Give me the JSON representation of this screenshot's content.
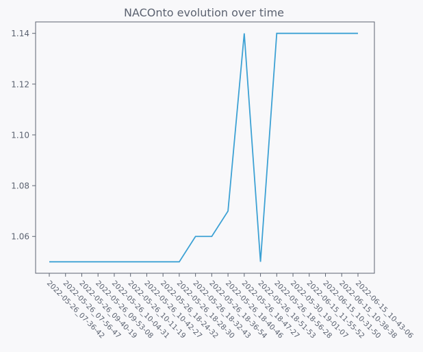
{
  "chart_data": {
    "type": "line",
    "title": "NACOnto evolution over time",
    "xlabel": "",
    "ylabel": "",
    "categories": [
      "2022-05-26_07-36-42",
      "2022-05-26_07-56-47",
      "2022-05-26_09-40-19",
      "2022-05-26_09-53-08",
      "2022-05-26_10-04-31",
      "2022-05-26_10-11-19",
      "2022-05-26_10-42-27",
      "2022-05-26_18-24-32",
      "2022-05-26_18-28-30",
      "2022-05-26_18-32-43",
      "2022-05-26_18-36-54",
      "2022-05-26_18-40-46",
      "2022-05-26_18-47-27",
      "2022-05-26_18-51-53",
      "2022-05-26_18-56-28",
      "2022-05-30_19-01-07",
      "2022-06-15_11-55-52",
      "2022-06-15_10-31-50",
      "2022-06-15_10-38-38",
      "2022-06-15_10-43-06"
    ],
    "values": [
      1.05,
      1.05,
      1.05,
      1.05,
      1.05,
      1.05,
      1.05,
      1.05,
      1.05,
      1.06,
      1.06,
      1.07,
      1.14,
      1.05,
      1.14,
      1.14,
      1.14,
      1.14,
      1.14,
      1.14
    ],
    "yticks": [
      "1.06",
      "1.08",
      "1.10",
      "1.12",
      "1.14"
    ],
    "ytick_values": [
      1.06,
      1.08,
      1.1,
      1.12,
      1.14
    ],
    "ylim": [
      1.0455,
      1.1445
    ],
    "grid": false,
    "line_color": "#3ca1d4",
    "axis_color": "#5b6270"
  }
}
